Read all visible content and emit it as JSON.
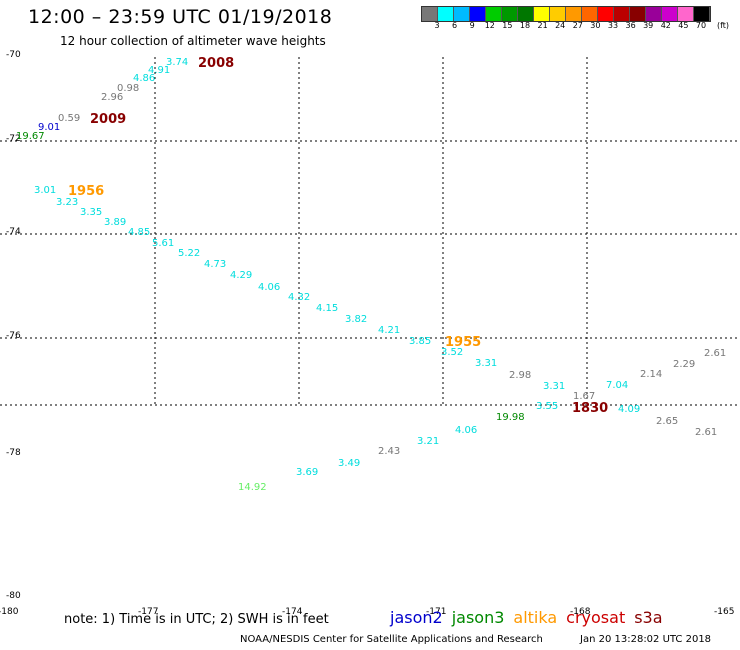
{
  "title": "12:00 – 23:59 UTC 01/19/2018",
  "subtitle": "12 hour collection of altimeter wave heights",
  "legend": {
    "colors": [
      "#777777",
      "#00ffff",
      "#00bbff",
      "#0000ff",
      "#00cc00",
      "#009900",
      "#007700",
      "#ffff00",
      "#ffcc00",
      "#ff9900",
      "#ff6600",
      "#ff0000",
      "#bb0000",
      "#880000",
      "#990099",
      "#cc00cc",
      "#ff66cc",
      "#000000"
    ],
    "labels": [
      "3",
      "6",
      "9",
      "12",
      "15",
      "18",
      "21",
      "24",
      "27",
      "30",
      "33",
      "36",
      "39",
      "42",
      "45",
      "70"
    ],
    "unit": "(ft)"
  },
  "note": "note: 1) Time is in UTC; 2) SWH is in feet",
  "credit": "NOAA/NESDIS Center for Satellite Applications and Research",
  "timestamp": "Jan 20 13:28:02 UTC 2018",
  "satellites": [
    {
      "name": "jason2",
      "color": "#0000cc"
    },
    {
      "name": "jason3",
      "color": "#008800"
    },
    {
      "name": "altika",
      "color": "#ff9900"
    },
    {
      "name": "cryosat",
      "color": "#cc0000"
    },
    {
      "name": "s3a",
      "color": "#880000"
    }
  ],
  "lat_labels": [
    "-70",
    "-72",
    "-74",
    "-76",
    "-78",
    "-80"
  ],
  "lon_labels": [
    "-180",
    "-177",
    "-174",
    "-171",
    "-168",
    "-165"
  ],
  "chart_data": {
    "type": "scatter",
    "x_label": "",
    "y_label": "",
    "wave_heights": [
      {
        "text": "3.74",
        "color": "#00dddd"
      },
      {
        "text": "4.91",
        "color": "#00dddd"
      },
      {
        "text": "4.86",
        "color": "#00dddd"
      },
      {
        "text": "0.98",
        "color": "#777777"
      },
      {
        "text": "2.96",
        "color": "#777777"
      },
      {
        "text": "0.59",
        "color": "#777777"
      },
      {
        "text": "9.01",
        "color": "#0000cc"
      },
      {
        "text": "19.67",
        "color": "#008800"
      },
      {
        "text": "3.01",
        "color": "#00dddd"
      },
      {
        "text": "3.23",
        "color": "#00dddd"
      },
      {
        "text": "3.35",
        "color": "#00dddd"
      },
      {
        "text": "3.89",
        "color": "#00dddd"
      },
      {
        "text": "4.85",
        "color": "#00dddd"
      },
      {
        "text": "5.61",
        "color": "#00dddd"
      },
      {
        "text": "5.22",
        "color": "#00dddd"
      },
      {
        "text": "4.73",
        "color": "#00dddd"
      },
      {
        "text": "4.29",
        "color": "#00dddd"
      },
      {
        "text": "4.06",
        "color": "#00dddd"
      },
      {
        "text": "4.32",
        "color": "#00dddd"
      },
      {
        "text": "4.15",
        "color": "#00dddd"
      },
      {
        "text": "3.82",
        "color": "#00dddd"
      },
      {
        "text": "4.21",
        "color": "#00dddd"
      },
      {
        "text": "3.85",
        "color": "#00dddd"
      },
      {
        "text": "3.52",
        "color": "#00dddd"
      },
      {
        "text": "3.31",
        "color": "#00dddd"
      },
      {
        "text": "2.98",
        "color": "#777777"
      },
      {
        "text": "3.31",
        "color": "#00dddd"
      },
      {
        "text": "1.67",
        "color": "#777777"
      },
      {
        "text": "7.04",
        "color": "#00dddd"
      },
      {
        "text": "2.14",
        "color": "#777777"
      },
      {
        "text": "2.29",
        "color": "#777777"
      },
      {
        "text": "2.61",
        "color": "#777777"
      },
      {
        "text": "19.98",
        "color": "#008800"
      },
      {
        "text": "3.55",
        "color": "#00dddd"
      },
      {
        "text": "4.09",
        "color": "#00dddd"
      },
      {
        "text": "2.65",
        "color": "#777777"
      },
      {
        "text": "2.61",
        "color": "#777777"
      },
      {
        "text": "4.06",
        "color": "#00dddd"
      },
      {
        "text": "3.21",
        "color": "#00dddd"
      },
      {
        "text": "2.43",
        "color": "#777777"
      },
      {
        "text": "3.49",
        "color": "#00dddd"
      },
      {
        "text": "3.69",
        "color": "#00dddd"
      },
      {
        "text": "14.92",
        "color": "#66ee66"
      }
    ],
    "time_labels": [
      {
        "text": "2008",
        "color": "#880000"
      },
      {
        "text": "2009",
        "color": "#880000"
      },
      {
        "text": "1956",
        "color": "#ff9900"
      },
      {
        "text": "1955",
        "color": "#ff9900"
      },
      {
        "text": "1830",
        "color": "#880000"
      }
    ]
  }
}
